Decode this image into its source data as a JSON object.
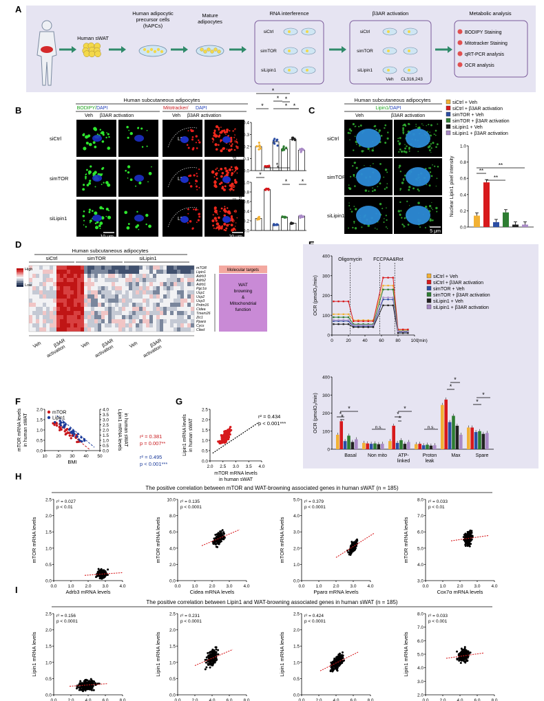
{
  "panels": {
    "A": "A",
    "B": "B",
    "C": "C",
    "D": "D",
    "E": "E",
    "F": "F",
    "G": "G",
    "H": "H",
    "I": "I"
  },
  "A": {
    "human": "Human sWAT",
    "hapc": [
      "Human adipocytic",
      "precursor cells",
      "(hAPCs)"
    ],
    "mature": [
      "Mature",
      "adipocytes"
    ],
    "rnai": "RNA interference",
    "b3ar": "β3AR activation",
    "metab": "Metabolic analysis",
    "groups": [
      "siCtrl",
      "simTOR",
      "siLipin1"
    ],
    "veh": "Veh",
    "cl": "CL316,243",
    "analysis": [
      "BODIPY Staining",
      "Mitotracker Staining",
      "qRT-PCR analysis",
      "OCR analysis"
    ]
  },
  "B": {
    "title": "Human subcutaneous adipocytes",
    "bodipy": "BODIPY/",
    "dapi": " DAPI",
    "mito": "Mitotracker/",
    "dapi2": "DAPI",
    "veh": "Veh",
    "act": "β3AR activation",
    "rows": [
      "siCtrl",
      "simTOR",
      "siLipin1"
    ],
    "ld": "LD",
    "scale1": "10 μm",
    "scale2": "20 μm",
    "ylab1": [
      "Lipid droplets area/",
      "Total area"
    ],
    "ylab2": [
      "Mitochondrial area/",
      "Total area"
    ],
    "ticks1": [
      "0.0",
      "0.1",
      "0.2",
      "0.3",
      "0.4"
    ],
    "ticks2": [
      "0.0",
      "0.2",
      "0.4",
      "0.6",
      "0.8",
      "1.0"
    ],
    "star": "*"
  },
  "C": {
    "title": "Human subcutaneous adipocytes",
    "lipin": "Lipin1/",
    "dapi": "DAPI",
    "veh": "Veh",
    "act": "β3AR activation",
    "rows": [
      "siCtrl",
      "simTOR",
      "siLipin1"
    ],
    "scale": "5 μm",
    "legend": [
      "siCtrl + Veh",
      "siCtrl + β3AR activation",
      "simTOR + Veh",
      "simTOR + β3AR activation",
      "siLipin1 + Veh",
      "siLipin1 + β3AR activation"
    ],
    "ylab": "Nuclear Lipin1 pixel intensity",
    "ticks": [
      "0.0",
      "0.2",
      "0.4",
      "0.6",
      "0.8",
      "1.0"
    ],
    "values": [
      0.14,
      0.55,
      0.06,
      0.18,
      0.03,
      0.03
    ],
    "sig": "**"
  },
  "colors": [
    "#f2b134",
    "#d7191c",
    "#2c4ea3",
    "#2e7d32",
    "#222222",
    "#a98ac6"
  ],
  "D": {
    "title": "Human subcutaneous adipocytes",
    "groups": [
      "siCtrl",
      "simTOR",
      "siLipin1"
    ],
    "high": "High",
    "low": "Low",
    "genes": [
      "mTOR",
      "Lipin1",
      "Adrb3",
      "Adrb2",
      "Adrb1",
      "Pgc1α",
      "Ucp1",
      "Ucp2",
      "Ucp3",
      "Prdm16",
      "Cidea",
      "Tmem26",
      "Zic1",
      "Pparα",
      "Cycs",
      "Cited"
    ],
    "mol": "Molecular targets",
    "wat": [
      "WAT",
      "browning",
      "&",
      "Mitochondrial",
      "function"
    ],
    "xl": [
      "Veh",
      "β3AR",
      "activation",
      "Veh",
      "β3AR",
      "activation",
      "Veh",
      "β3AR",
      "activation"
    ]
  },
  "E": {
    "legend": [
      "siCtrl + Veh",
      "siCtrl + β3AR activation",
      "simTOR + Veh",
      "simTOR + β3AR activation",
      "siLipin1 + Veh",
      "siLipin1 + β3AR activation"
    ],
    "ylab": "OCR (pmolO₂/min)",
    "markers": [
      "Oligomycin",
      "FCCP",
      "AA&Rot"
    ],
    "xticks": [
      "0",
      "20",
      "40",
      "60",
      "80",
      "100"
    ],
    "xunit": "(min)",
    "yticks": [
      "0",
      "100",
      "200",
      "300",
      "400"
    ],
    "bar_ticks": [
      "0",
      "100",
      "200",
      "300",
      "400"
    ],
    "bar_cats": [
      "Basal",
      "Non mito",
      "ATP-",
      "linked",
      "Proton",
      "leak",
      "Max",
      "Spare"
    ],
    "ns": "n.s."
  },
  "F": {
    "ylab1": [
      "mTOR mRNA levels",
      "in human sWAT"
    ],
    "ylab2": [
      "Lipin1 mRNA levels",
      "in human sWAT"
    ],
    "xlab": "BMI",
    "xticks": [
      "10",
      "20",
      "30",
      "40",
      "50"
    ],
    "yticks": [
      "0.0",
      "0.5",
      "1.0",
      "1.5",
      "2.0"
    ],
    "yticks2": [
      "0.0",
      "0.5",
      "1.0",
      "1.5",
      "2.0",
      "2.5",
      "3.0",
      "3.5",
      "4.0"
    ],
    "leg": [
      "mTOR",
      "Lipin1"
    ],
    "r1": "r² = 0.381",
    "p1": "p = 0.007**",
    "r2": "r² = 0.495",
    "p2": "p < 0.001***"
  },
  "G": {
    "ylab": [
      "Lipin1 mRNA levels",
      "in human sWAT"
    ],
    "xlab": [
      "mTOR mRNA levels",
      "in human sWAT"
    ],
    "r": "r² = 0.434",
    "p": "p < 0.001***",
    "xticks": [
      "2.0",
      "2.5",
      "3.0",
      "3.5",
      "4.0"
    ],
    "yticks": [
      "0.0",
      "0.5",
      "1.0",
      "1.5",
      "2.0",
      "2.5"
    ]
  },
  "H": {
    "title": "The positive correlation between mTOR and WAT-browning associated genes in human sWAT (n = 185)",
    "plots": [
      {
        "ylab": "mTOR mRNA levels",
        "xlab": "Adrb3 mRNA levels",
        "r": "r² = 0.027",
        "p": "p < 0.01",
        "xt": [
          "0.0",
          "1.0",
          "2.0",
          "3.0",
          "4.0"
        ],
        "yt": [
          "0.0",
          "0.5",
          "1.0",
          "1.5",
          "2.0",
          "2.5"
        ]
      },
      {
        "ylab": "mTOR mRNA levels",
        "xlab": "Cidea mRNA levels",
        "r": "r² = 0.135",
        "p": "p < 0.0001",
        "xt": [
          "0.0",
          "1.0",
          "2.0",
          "3.0",
          "4.0"
        ],
        "yt": [
          "0.0",
          "2.0",
          "4.0",
          "6.0",
          "8.0",
          "10.0"
        ]
      },
      {
        "ylab": "mTOR mRNA levels",
        "xlab": "Pparα mRNA levels",
        "r": "r² = 0.379",
        "p": "p < 0.0001",
        "xt": [
          "0.0",
          "1.0",
          "2.0",
          "3.0",
          "4.0"
        ],
        "yt": [
          "0.0",
          "1.0",
          "2.0",
          "3.0",
          "4.0",
          "5.0"
        ]
      },
      {
        "ylab": "mTOR mRNA levels",
        "xlab": "Cox7α mRNA levels",
        "r": "r² = 0.033",
        "p": "p < 0.01",
        "xt": [
          "0.0",
          "1.0",
          "2.0",
          "3.0",
          "4.0"
        ],
        "yt": [
          "3.0",
          "4.0",
          "5.0",
          "6.0",
          "7.0",
          "8.0"
        ]
      }
    ]
  },
  "I": {
    "title": "The positive correlation between Lipin1 and WAT-browning associated genes in human sWAT (n = 185)",
    "plots": [
      {
        "ylab": "Lipin1 mRNA levels",
        "xlab": "Adrb3 mRNA levels",
        "r": "r² = 0.156",
        "p": "p < 0.0001",
        "xt": [
          "0.0",
          "2.0",
          "4.0",
          "6.0",
          "8.0"
        ],
        "yt": [
          "0.0",
          "0.5",
          "1.0",
          "1.5",
          "2.0",
          "2.5"
        ]
      },
      {
        "ylab": "Lipin1 mRNA levels",
        "xlab": "Cidea mRNA levels",
        "r": "r² = 0.231",
        "p": "p < 0.0001",
        "xt": [
          "0.0",
          "2.0",
          "4.0",
          "6.0",
          "8.0"
        ],
        "yt": [
          "0.0",
          "0.5",
          "1.0",
          "1.5",
          "2.0",
          "2.5"
        ]
      },
      {
        "ylab": "Lipin1 mRNA levels",
        "xlab": "Pparα mRNA levels",
        "r": "r² = 0.424",
        "p": "p < 0.0001",
        "xt": [
          "0.0",
          "2.0",
          "4.0",
          "6.0",
          "8.0"
        ],
        "yt": [
          "0.0",
          "0.5",
          "1.0",
          "1.5",
          "2.0",
          "2.5"
        ]
      },
      {
        "ylab": "Lipin1 mRNA levels",
        "xlab": "Cox7α mRNA levels",
        "r": "r² = 0.033",
        "p": "p < 0.001",
        "xt": [
          "0.0",
          "2.0",
          "4.0",
          "6.0",
          "8.0"
        ],
        "yt": [
          "2.0",
          "3.0",
          "4.0",
          "5.0",
          "6.0",
          "7.0",
          "8.0"
        ]
      }
    ]
  }
}
